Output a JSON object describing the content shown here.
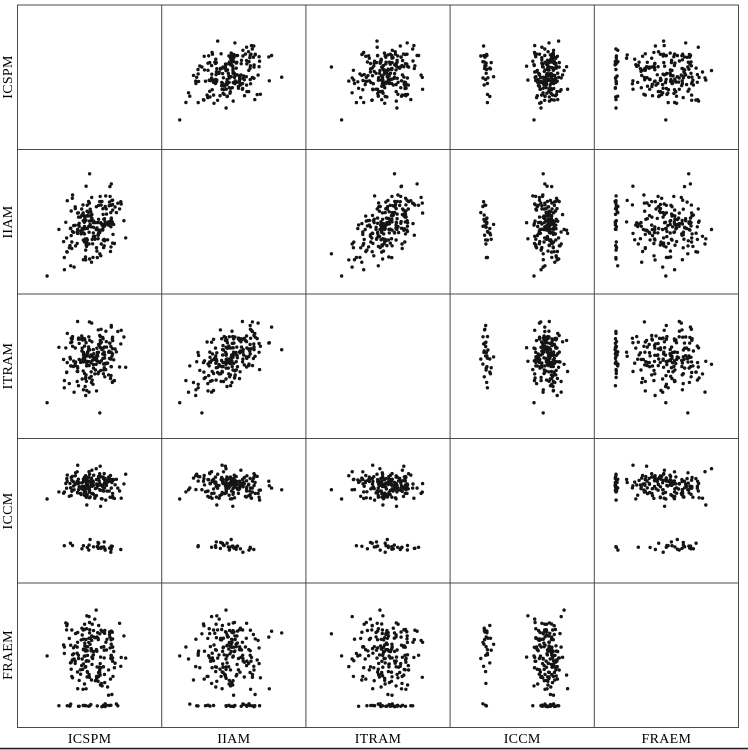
{
  "figure": {
    "background": "#ffffff",
    "grid_color": "#4a4a4a",
    "bottom_rule_color": "#1f1f1f"
  },
  "chart_data": {
    "type": "scatter",
    "subtype": "scatterplot_matrix",
    "title": "",
    "variables": [
      "ICSPM",
      "IIAM",
      "ITRAM",
      "ICCM",
      "FRAEM"
    ],
    "row_labels": [
      "ICSPM",
      "IIAM",
      "ITRAM",
      "ICCM",
      "FRAEM"
    ],
    "col_labels": [
      "ICSPM",
      "IIAM",
      "ITRAM",
      "ICCM",
      "FRAEM"
    ],
    "grid_shape": "5x5",
    "diagonal": "empty",
    "axes_ticks": "none shown",
    "n_points": 200,
    "marker": {
      "shape": "dot",
      "radius_px": 1.7,
      "color": "#141414"
    },
    "seed": 20240817,
    "common_factor_tail": {
      "prob": 0.05,
      "shift": -2.2
    },
    "distributions": {
      "ICSPM": {
        "kind": "normal",
        "mean": 0.53,
        "sd": 0.1,
        "factor_loading": 0.35
      },
      "IIAM": {
        "kind": "normal",
        "mean": 0.49,
        "sd": 0.115,
        "factor_loading": 0.7
      },
      "ITRAM": {
        "kind": "normal",
        "mean": 0.57,
        "sd": 0.1,
        "factor_loading": 0.7
      },
      "ICCM": {
        "kind": "bimodal",
        "clusters": [
          {
            "mean": 0.25,
            "sd": 0.015,
            "weight": 0.13
          },
          {
            "mean": 0.68,
            "sd": 0.055,
            "weight": 0.87
          }
        ]
      },
      "FRAEM": {
        "kind": "zero_inflated_normal",
        "zero_prob": 0.14,
        "zero_value": 0.15,
        "zero_jitter_sd": 0.006,
        "mean": 0.52,
        "sd": 0.125,
        "factor_loading": 0.0
      }
    },
    "relationships": {
      "IIAM_vs_ITRAM": "clear positive correlation with joint low tail",
      "ICSPM_vs_IIAM": "weak positive, round cloud",
      "ICSPM_vs_ITRAM": "weak positive, round cloud",
      "ICCM": "two discrete clusters: small tight low cluster (~13%), large high cluster (~87%)",
      "FRAEM": "floor effect: ~14% of cases piled at minimum value, seen as edge strips"
    }
  }
}
